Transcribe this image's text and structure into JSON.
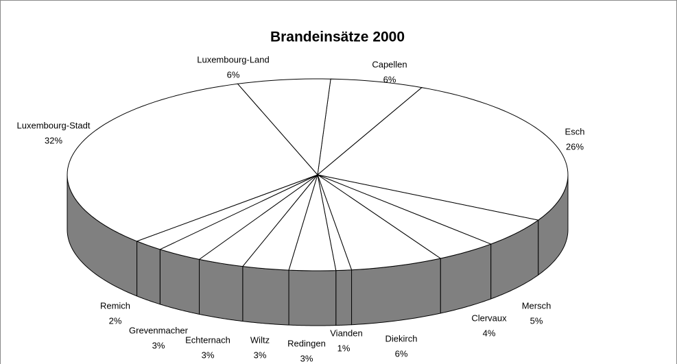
{
  "chart_data": {
    "type": "pie3d",
    "title": "Brandeinsätze 2000",
    "categories": [
      "Capellen",
      "Esch",
      "Mersch",
      "Clervaux",
      "Diekirch",
      "Vianden",
      "Redingen",
      "Wiltz",
      "Echternach",
      "Grevenmacher",
      "Remich",
      "Luxembourg-Stadt",
      "Luxembourg-Land"
    ],
    "values": [
      6,
      26,
      5,
      4,
      6,
      1,
      3,
      3,
      3,
      3,
      2,
      32,
      6
    ],
    "value_labels": [
      "6%",
      "26%",
      "5%",
      "4%",
      "6%",
      "1%",
      "3%",
      "3%",
      "3%",
      "3%",
      "2%",
      "32%",
      "6%"
    ],
    "top_color": "#ffffff",
    "side_color": "#808080"
  }
}
